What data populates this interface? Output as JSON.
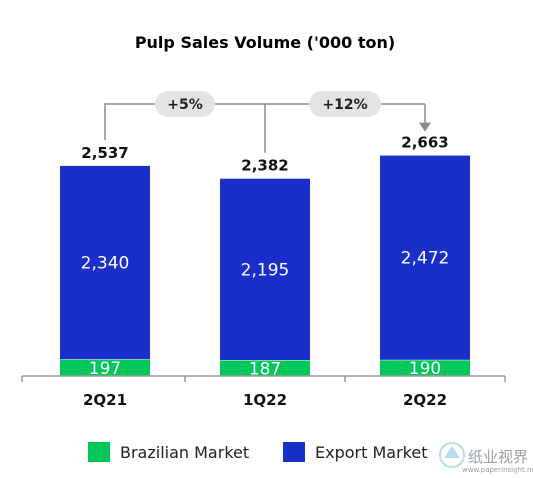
{
  "chart_data": {
    "type": "bar",
    "stacked": true,
    "title": "Pulp Sales Volume ('000 ton)",
    "categories": [
      "2Q21",
      "1Q22",
      "2Q22"
    ],
    "series": [
      {
        "name": "Brazilian Market",
        "values": [
          197,
          187,
          190
        ],
        "color": "#00c85a"
      },
      {
        "name": "Export Market",
        "values": [
          2340,
          2195,
          2472
        ],
        "color": "#1a2fc9"
      }
    ],
    "value_labels": {
      "brazilian": [
        "197",
        "187",
        "190"
      ],
      "export": [
        "2,340",
        "2,195",
        "2,472"
      ]
    },
    "totals": [
      "2,537",
      "2,382",
      "2,663"
    ],
    "totals_values": [
      2537,
      2382,
      2663
    ],
    "comparisons": [
      {
        "label": "+5%",
        "from": "2Q21",
        "to": "2Q22"
      },
      {
        "label": "+12%",
        "from": "1Q22",
        "to": "2Q22"
      }
    ],
    "ylim": [
      0,
      2663
    ],
    "legend_position": "bottom",
    "grid": false
  },
  "watermark": {
    "text": "纸业视界",
    "url": "www.paperinsight.net"
  }
}
